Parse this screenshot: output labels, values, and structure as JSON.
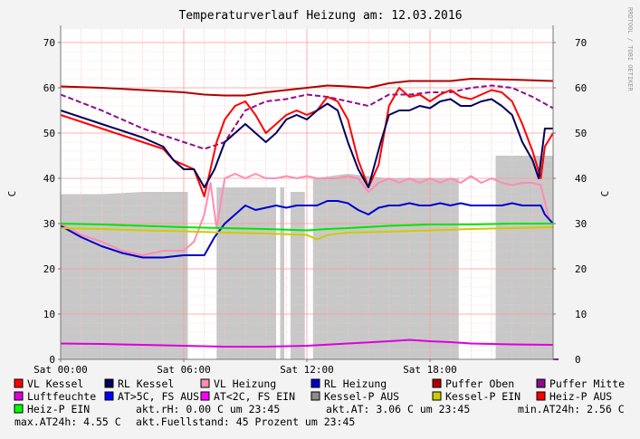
{
  "chart_data": {
    "type": "line",
    "title": "Temperaturverlauf Heizung am: 12.03.2016",
    "watermark": "RRDTOOL / TOBI OETIKER",
    "ylabel": "C",
    "ylim": [
      0,
      73
    ],
    "yticks": [
      0,
      10,
      20,
      30,
      40,
      50,
      60,
      70
    ],
    "xlim": [
      0,
      24
    ],
    "xticks": [
      {
        "hour": 0,
        "label": "Sat 00:00"
      },
      {
        "hour": 6,
        "label": "Sat 06:00"
      },
      {
        "hour": 12,
        "label": "Sat 12:00"
      },
      {
        "hour": 18,
        "label": "Sat 18:00"
      }
    ],
    "grid": true,
    "area": {
      "name": "Kessel-P AUS",
      "color": "#c8c8c8",
      "spans": [
        [
          0,
          6.2
        ],
        [
          7.6,
          10.5
        ],
        [
          10.7,
          10.9
        ],
        [
          11.2,
          11.9
        ],
        [
          12.3,
          19.4
        ],
        [
          21.2,
          24
        ]
      ],
      "points": [
        [
          0,
          36.5
        ],
        [
          2,
          36.5
        ],
        [
          4,
          37
        ],
        [
          6,
          37
        ],
        [
          6.2,
          37
        ],
        [
          7.6,
          38
        ],
        [
          10.5,
          38
        ],
        [
          10.7,
          38
        ],
        [
          10.9,
          38
        ],
        [
          11.2,
          37
        ],
        [
          11.9,
          37
        ],
        [
          12.3,
          40
        ],
        [
          14,
          41
        ],
        [
          16,
          40
        ],
        [
          19.4,
          40
        ],
        [
          21.2,
          45
        ],
        [
          24,
          45
        ]
      ]
    },
    "series": [
      {
        "name": "Puffer Oben",
        "color": "#b00000",
        "dashed": false,
        "points": [
          [
            0,
            60.3
          ],
          [
            2,
            60
          ],
          [
            4,
            59.5
          ],
          [
            6,
            59
          ],
          [
            7,
            58.5
          ],
          [
            8,
            58.3
          ],
          [
            9,
            58.3
          ],
          [
            10,
            59
          ],
          [
            11,
            59.5
          ],
          [
            12,
            60
          ],
          [
            13,
            60.5
          ],
          [
            14,
            60.3
          ],
          [
            15,
            60
          ],
          [
            16,
            61
          ],
          [
            17,
            61.5
          ],
          [
            18,
            61.5
          ],
          [
            19,
            61.5
          ],
          [
            20,
            62
          ],
          [
            22,
            61.8
          ],
          [
            24,
            61.5
          ]
        ]
      },
      {
        "name": "Puffer Mitte",
        "color": "#8b0f8b",
        "dashed": true,
        "points": [
          [
            0,
            58.5
          ],
          [
            2,
            55
          ],
          [
            4,
            51
          ],
          [
            6,
            48
          ],
          [
            7,
            46.5
          ],
          [
            8,
            48
          ],
          [
            9,
            55
          ],
          [
            10,
            57
          ],
          [
            11,
            57.5
          ],
          [
            12,
            58.5
          ],
          [
            13,
            58
          ],
          [
            14,
            57
          ],
          [
            15,
            56
          ],
          [
            16,
            58.5
          ],
          [
            17,
            58.5
          ],
          [
            18,
            59
          ],
          [
            19,
            59
          ],
          [
            20,
            60
          ],
          [
            21,
            60.5
          ],
          [
            22,
            60
          ],
          [
            23,
            58
          ],
          [
            24,
            55.5
          ]
        ]
      },
      {
        "name": "VL Kessel",
        "color": "#ff0000",
        "dashed": false,
        "points": [
          [
            0,
            54
          ],
          [
            2,
            51
          ],
          [
            4,
            48
          ],
          [
            5,
            46.5
          ],
          [
            5.5,
            44
          ],
          [
            6,
            43
          ],
          [
            6.5,
            42
          ],
          [
            7,
            36
          ],
          [
            7.3,
            42
          ],
          [
            7.6,
            48
          ],
          [
            8,
            53
          ],
          [
            8.5,
            56
          ],
          [
            9,
            57
          ],
          [
            9.5,
            54
          ],
          [
            10,
            50
          ],
          [
            10.5,
            52
          ],
          [
            11,
            54
          ],
          [
            11.5,
            55
          ],
          [
            12,
            54
          ],
          [
            12.5,
            55
          ],
          [
            13,
            58
          ],
          [
            13.5,
            57
          ],
          [
            14,
            53
          ],
          [
            14.5,
            44
          ],
          [
            15,
            38
          ],
          [
            15.5,
            43
          ],
          [
            16,
            56
          ],
          [
            16.5,
            60
          ],
          [
            17,
            58
          ],
          [
            17.5,
            58.5
          ],
          [
            18,
            57
          ],
          [
            18.5,
            58.5
          ],
          [
            19,
            59.5
          ],
          [
            19.5,
            58
          ],
          [
            20,
            57.5
          ],
          [
            20.5,
            58.5
          ],
          [
            21,
            59.5
          ],
          [
            21.5,
            59
          ],
          [
            22,
            57
          ],
          [
            22.5,
            52
          ],
          [
            23,
            46
          ],
          [
            23.4,
            40
          ],
          [
            23.6,
            47
          ],
          [
            24,
            50
          ]
        ]
      },
      {
        "name": "RL Kessel",
        "color": "#00005a",
        "dashed": false,
        "points": [
          [
            0,
            55
          ],
          [
            2,
            52
          ],
          [
            4,
            49
          ],
          [
            5,
            47
          ],
          [
            5.5,
            44
          ],
          [
            6,
            42
          ],
          [
            6.5,
            42
          ],
          [
            7,
            38
          ],
          [
            7.5,
            42
          ],
          [
            8,
            48
          ],
          [
            8.5,
            50
          ],
          [
            9,
            52
          ],
          [
            9.5,
            50
          ],
          [
            10,
            48
          ],
          [
            10.5,
            50
          ],
          [
            11,
            53
          ],
          [
            11.5,
            54
          ],
          [
            12,
            53
          ],
          [
            12.5,
            55
          ],
          [
            13,
            56.5
          ],
          [
            13.5,
            55
          ],
          [
            14,
            48
          ],
          [
            14.5,
            42
          ],
          [
            15,
            38
          ],
          [
            15.3,
            43
          ],
          [
            15.6,
            48
          ],
          [
            16,
            54
          ],
          [
            16.5,
            55
          ],
          [
            17,
            55
          ],
          [
            17.5,
            56
          ],
          [
            18,
            55.5
          ],
          [
            18.5,
            57
          ],
          [
            19,
            57.5
          ],
          [
            19.5,
            56
          ],
          [
            20,
            56
          ],
          [
            20.5,
            57
          ],
          [
            21,
            57.5
          ],
          [
            21.5,
            56
          ],
          [
            22,
            54
          ],
          [
            22.5,
            48
          ],
          [
            23,
            44
          ],
          [
            23.3,
            40
          ],
          [
            23.6,
            51
          ],
          [
            24,
            51
          ]
        ]
      },
      {
        "name": "VL Heizung",
        "color": "#ff8cb4",
        "dashed": false,
        "points": [
          [
            0,
            30
          ],
          [
            1,
            27.5
          ],
          [
            2,
            26
          ],
          [
            3,
            24
          ],
          [
            4,
            23
          ],
          [
            5,
            24
          ],
          [
            6,
            24
          ],
          [
            6.5,
            26
          ],
          [
            7,
            32
          ],
          [
            7.3,
            39
          ],
          [
            7.6,
            29
          ],
          [
            8,
            40
          ],
          [
            8.5,
            41
          ],
          [
            9,
            40
          ],
          [
            9.5,
            41
          ],
          [
            10,
            40
          ],
          [
            10.5,
            40
          ],
          [
            11,
            40.5
          ],
          [
            11.5,
            40
          ],
          [
            12,
            40.5
          ],
          [
            12.5,
            40
          ],
          [
            13,
            40
          ],
          [
            13.5,
            40
          ],
          [
            14,
            40.5
          ],
          [
            14.5,
            40
          ],
          [
            15,
            37
          ],
          [
            15.5,
            39
          ],
          [
            16,
            40
          ],
          [
            16.5,
            39
          ],
          [
            17,
            40
          ],
          [
            17.5,
            39
          ],
          [
            18,
            40
          ],
          [
            18.5,
            39
          ],
          [
            19,
            40
          ],
          [
            19.5,
            39
          ],
          [
            20,
            40.5
          ],
          [
            20.5,
            39
          ],
          [
            21,
            40
          ],
          [
            21.5,
            39
          ],
          [
            22,
            38.5
          ],
          [
            22.5,
            39
          ],
          [
            23,
            39
          ],
          [
            23.4,
            38.5
          ],
          [
            23.8,
            31
          ],
          [
            24,
            30
          ]
        ]
      },
      {
        "name": "RL Heizung",
        "color": "#0000cd",
        "dashed": false,
        "points": [
          [
            0,
            29.5
          ],
          [
            1,
            27
          ],
          [
            2,
            25
          ],
          [
            3,
            23.5
          ],
          [
            4,
            22.5
          ],
          [
            5,
            22.5
          ],
          [
            6,
            23
          ],
          [
            7,
            23
          ],
          [
            7.5,
            27
          ],
          [
            8,
            30
          ],
          [
            8.5,
            32
          ],
          [
            9,
            34
          ],
          [
            9.5,
            33
          ],
          [
            10,
            33.5
          ],
          [
            10.5,
            34
          ],
          [
            11,
            33.5
          ],
          [
            11.5,
            34
          ],
          [
            12,
            34
          ],
          [
            12.5,
            34
          ],
          [
            13,
            35
          ],
          [
            13.5,
            35
          ],
          [
            14,
            34.5
          ],
          [
            14.5,
            33
          ],
          [
            15,
            32
          ],
          [
            15.5,
            33.5
          ],
          [
            16,
            34
          ],
          [
            16.5,
            34
          ],
          [
            17,
            34.5
          ],
          [
            17.5,
            34
          ],
          [
            18,
            34
          ],
          [
            18.5,
            34.5
          ],
          [
            19,
            34
          ],
          [
            19.5,
            34.5
          ],
          [
            20,
            34
          ],
          [
            20.5,
            34
          ],
          [
            21,
            34
          ],
          [
            21.5,
            34
          ],
          [
            22,
            34.5
          ],
          [
            22.5,
            34
          ],
          [
            23,
            34
          ],
          [
            23.4,
            34
          ],
          [
            23.6,
            32
          ],
          [
            24,
            30
          ]
        ]
      },
      {
        "name": "Heiz-P EIN",
        "color": "#00e600",
        "dashed": false,
        "points": [
          [
            0,
            30
          ],
          [
            2,
            29.8
          ],
          [
            4,
            29.5
          ],
          [
            6,
            29.2
          ],
          [
            8,
            29
          ],
          [
            10,
            28.8
          ],
          [
            12,
            28.5
          ],
          [
            13,
            28.8
          ],
          [
            14,
            29
          ],
          [
            16,
            29.5
          ],
          [
            18,
            29.8
          ],
          [
            20,
            29.8
          ],
          [
            22,
            30
          ],
          [
            24,
            30
          ]
        ]
      },
      {
        "name": "Kessel-P EIN",
        "color": "#cccc00",
        "dashed": false,
        "points": [
          [
            0,
            29
          ],
          [
            2,
            28.8
          ],
          [
            4,
            28.5
          ],
          [
            6,
            28.3
          ],
          [
            8,
            28
          ],
          [
            10,
            27.8
          ],
          [
            12,
            27.5
          ],
          [
            12.5,
            26.5
          ],
          [
            13,
            27.5
          ],
          [
            14,
            28
          ],
          [
            16,
            28.2
          ],
          [
            18,
            28.5
          ],
          [
            20,
            28.8
          ],
          [
            22,
            29
          ],
          [
            24,
            29.2
          ]
        ]
      },
      {
        "name": "Luftfeuchte",
        "color": "#dc00dc",
        "dashed": false,
        "points": [
          [
            0,
            3.5
          ],
          [
            2,
            3.4
          ],
          [
            4,
            3.2
          ],
          [
            6,
            3
          ],
          [
            8,
            2.8
          ],
          [
            10,
            2.8
          ],
          [
            12,
            3
          ],
          [
            14,
            3.5
          ],
          [
            16,
            4
          ],
          [
            17,
            4.3
          ],
          [
            18,
            4
          ],
          [
            19,
            3.8
          ],
          [
            20,
            3.5
          ],
          [
            22,
            3.3
          ],
          [
            24,
            3.2
          ]
        ]
      }
    ]
  },
  "legend": [
    {
      "label": "VL Kessel",
      "color": "#ff0000"
    },
    {
      "label": "RL Kessel",
      "color": "#00005a"
    },
    {
      "label": "VL Heizung",
      "color": "#ff8cb4"
    },
    {
      "label": "RL Heizung",
      "color": "#0000cd"
    },
    {
      "label": "Puffer Oben",
      "color": "#b00000"
    },
    {
      "label": "Puffer Mitte",
      "color": "#8b0f8b"
    },
    {
      "label": "Luftfeuchte",
      "color": "#dc00dc"
    },
    {
      "label": "AT>5C, FS AUS",
      "color": "#0000ff"
    },
    {
      "label": "AT<2C, FS EIN",
      "color": "#ff00ff"
    },
    {
      "label": "Kessel-P AUS",
      "color": "#8c8c8c"
    },
    {
      "label": "Kessel-P EIN",
      "color": "#cccc00"
    },
    {
      "label": "Heiz-P AUS",
      "color": "#ff0000"
    },
    {
      "label": "Heiz-P EIN",
      "color": "#00ff00"
    }
  ],
  "stats": {
    "akt_rh": "akt.rH: 0.00 C um 23:45",
    "akt_at": "akt.AT: 3.06 C um 23:45",
    "min_at": "min.AT24h: 2.56 C",
    "max_at": "max.AT24h: 4.55 C",
    "fuellstand": "akt.Fuellstand:   45 Prozent um 23:45"
  }
}
